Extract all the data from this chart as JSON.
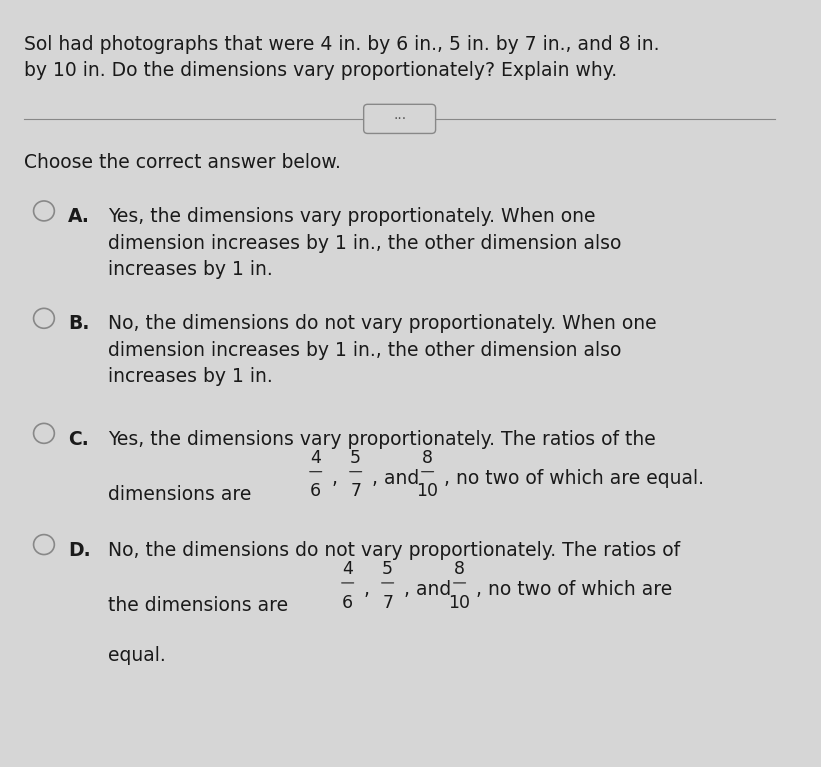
{
  "background_color": "#d6d6d6",
  "title_text": "Sol had photographs that were 4 in. by 6 in., 5 in. by 7 in., and 8 in.\nby 10 in. Do the dimensions vary proportionately? Explain why.",
  "choose_text": "Choose the correct answer below.",
  "option_A_label": "A.",
  "option_A_text": "Yes, the dimensions vary proportionately. When one\ndimension increases by 1 in., the other dimension also\nincreases by 1 in.",
  "option_B_label": "B.",
  "option_B_text": "No, the dimensions do not vary proportionately. When one\ndimension increases by 1 in., the other dimension also\nincreases by 1 in.",
  "option_C_label": "C.",
  "option_C_line1": "Yes, the dimensions vary proportionately. The ratios of the",
  "option_C_line2_pre": "dimensions are ",
  "option_C_fracs": [
    "4/6",
    "5/7",
    "8/10"
  ],
  "option_C_line2_post": ", no two of which are equal.",
  "option_D_label": "D.",
  "option_D_line1": "No, the dimensions do not vary proportionately. The ratios of",
  "option_D_line2_pre": "the dimensions are ",
  "option_D_fracs": [
    "4/6",
    "5/7",
    "8/10"
  ],
  "option_D_line2_post": ", no two of which are",
  "option_D_line3": "equal.",
  "text_color": "#1a1a1a",
  "bold_color": "#000000",
  "divider_color": "#888888",
  "circle_color": "#888888",
  "font_size_title": 13.5,
  "font_size_body": 13.5,
  "font_size_bold": 13.5
}
